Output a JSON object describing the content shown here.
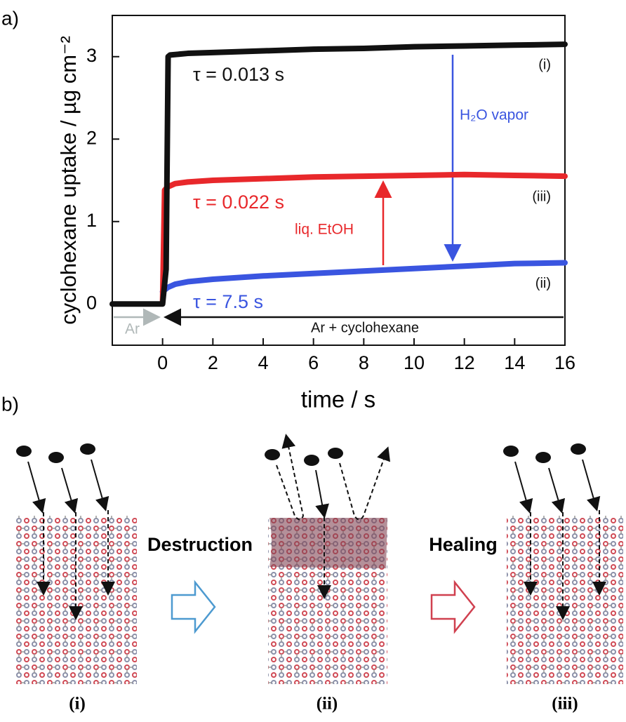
{
  "chart_data": {
    "type": "line",
    "panel_label": "a)",
    "xlabel": "time / s",
    "ylabel": "cyclohexane uptake / µg cm⁻²",
    "xlim": [
      -2,
      16
    ],
    "ylim": [
      -0.5,
      3.5
    ],
    "xticks": [
      0,
      2,
      4,
      6,
      8,
      10,
      12,
      14,
      16
    ],
    "yticks": [
      0,
      1,
      2,
      3
    ],
    "series": [
      {
        "name": "(i)",
        "color": "#111111",
        "x": [
          -2,
          -1,
          0,
          0.14,
          0.22,
          0.3,
          1,
          2,
          4,
          6,
          8,
          10,
          12,
          14,
          16
        ],
        "values": [
          0,
          0,
          0,
          0.42,
          3.0,
          3.02,
          3.04,
          3.05,
          3.07,
          3.09,
          3.1,
          3.12,
          3.13,
          3.14,
          3.15
        ]
      },
      {
        "name": "(iii)",
        "color": "#e8282b",
        "x": [
          0,
          0.08,
          0.2,
          0.5,
          1,
          2,
          4,
          6,
          8,
          10,
          12,
          14,
          16
        ],
        "values": [
          0.02,
          1.38,
          1.42,
          1.46,
          1.48,
          1.5,
          1.52,
          1.54,
          1.55,
          1.56,
          1.57,
          1.56,
          1.55
        ]
      },
      {
        "name": "(ii)",
        "color": "#3a55e0",
        "x": [
          0,
          0.2,
          0.5,
          1,
          2,
          4,
          6,
          8,
          10,
          12,
          14,
          16
        ],
        "values": [
          0.15,
          0.2,
          0.24,
          0.27,
          0.3,
          0.34,
          0.37,
          0.4,
          0.43,
          0.46,
          0.49,
          0.5
        ]
      }
    ],
    "annotations": [
      "τ = 0.013 s",
      "τ = 0.022 s",
      "τ = 7.5 s",
      "H₂O vapor",
      "liq. EtOH",
      "Ar",
      "Ar + cyclohexane"
    ]
  },
  "diagram": {
    "panel_label": "b)",
    "steps": [
      "Destruction",
      "Healing"
    ],
    "stages": [
      "(i)",
      "(ii)",
      "(iii)"
    ]
  }
}
